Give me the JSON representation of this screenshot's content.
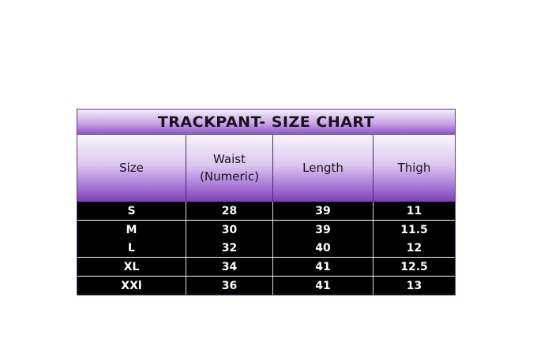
{
  "title": "TRACKPANT- SIZE CHART",
  "columns": [
    "Size",
    "Waist\n(Numeric)",
    "Length",
    "Thigh"
  ],
  "rows": [
    [
      "S",
      "28",
      "39",
      "11"
    ],
    [
      "M",
      "30",
      "39",
      "11.5"
    ],
    [
      "L",
      "32",
      "40",
      "12"
    ],
    [
      "XL",
      "34",
      "41",
      "12.5"
    ],
    [
      "XXl",
      "36",
      "41",
      "13"
    ]
  ],
  "colors": {
    "header_purple": "#7b3fb3",
    "row_bg": "#000000",
    "row_text": "#ffffff"
  }
}
